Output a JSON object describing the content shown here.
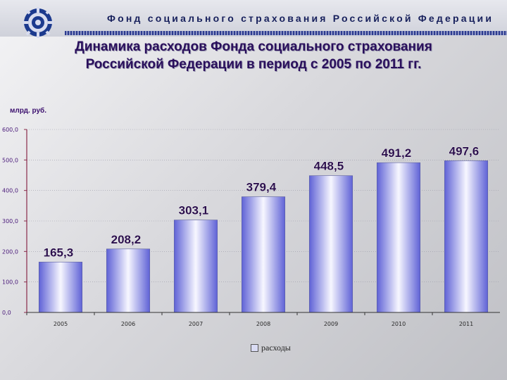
{
  "header": {
    "org_title": "Фонд социального страхования Российской Федерации"
  },
  "slide": {
    "title_line1": "Динамика расходов Фонда социального страхования",
    "title_line2": "Российской Федерации  в период с 2005 по 2011 гг."
  },
  "colors": {
    "bar_center": "#f7f7ff",
    "bar_edge": "#5f62d6",
    "axis": "#8a2a4a",
    "grid": "#9a9aa8"
  },
  "chart_data": {
    "type": "bar",
    "ylabel": "млрд. руб.",
    "categories": [
      "2005",
      "2006",
      "2007",
      "2008",
      "2009",
      "2010",
      "2011"
    ],
    "series": [
      {
        "name": "расходы",
        "values": [
          165.3,
          208.2,
          303.1,
          379.4,
          448.5,
          491.2,
          497.6
        ]
      }
    ],
    "data_labels": [
      "165,3",
      "208,2",
      "303,1",
      "379,4",
      "448,5",
      "491,2",
      "497,6"
    ],
    "ylim": [
      0,
      600
    ],
    "yticks": [
      0,
      100,
      200,
      300,
      400,
      500,
      600
    ],
    "ytick_labels": [
      "0,0",
      "100,0",
      "200,0",
      "300,0",
      "400,0",
      "500,0",
      "600,0"
    ],
    "grid": true,
    "legend": "bottom"
  }
}
